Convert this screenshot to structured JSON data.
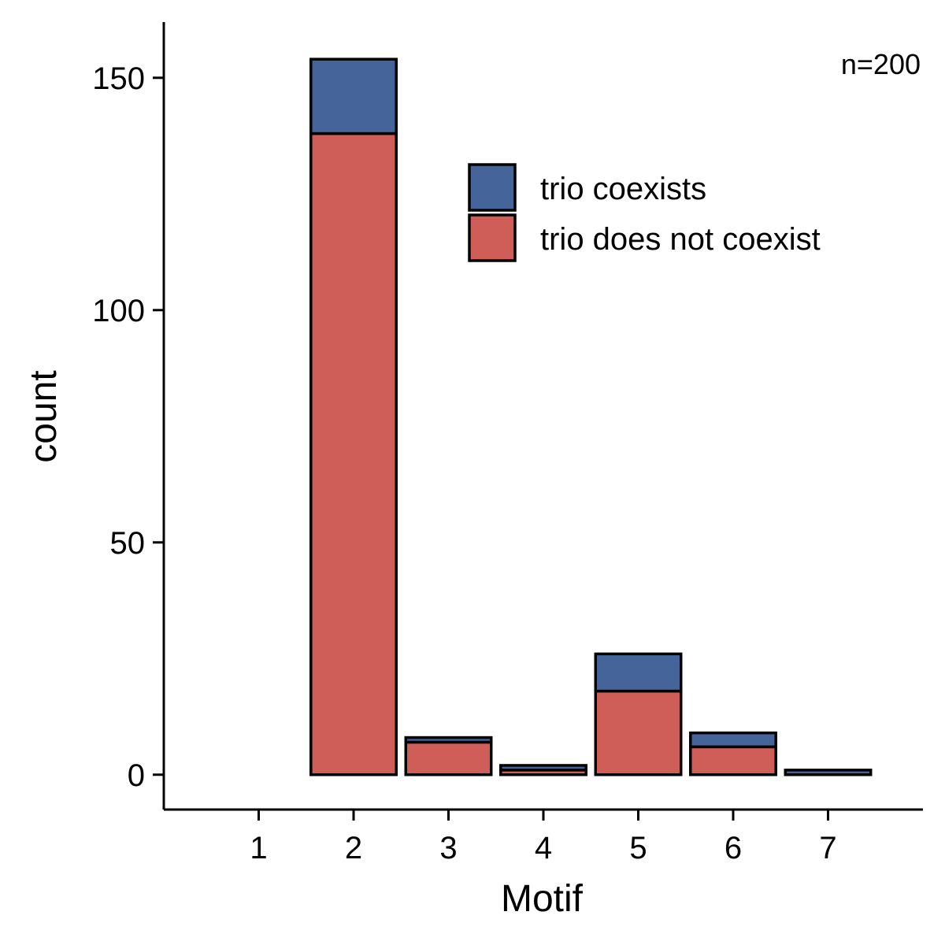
{
  "chart_data": {
    "type": "bar",
    "stacked": true,
    "title": "",
    "xlabel": "Motif",
    "ylabel": "count",
    "annotation": "n=200",
    "categories": [
      "1",
      "2",
      "3",
      "4",
      "5",
      "6",
      "7"
    ],
    "series": [
      {
        "name": "trio does not coexist",
        "color": "#D05E58",
        "values": [
          0,
          138,
          7,
          1,
          18,
          6,
          0
        ]
      },
      {
        "name": "trio coexists",
        "color": "#45659A",
        "values": [
          0,
          16,
          1,
          1,
          8,
          3,
          1
        ]
      }
    ],
    "legend_order": [
      "trio coexists",
      "trio does not coexist"
    ],
    "ylim": [
      -7.5,
      162
    ],
    "yticks": [
      0,
      50,
      100,
      150
    ],
    "grid": false,
    "legend_position": "top-right"
  }
}
